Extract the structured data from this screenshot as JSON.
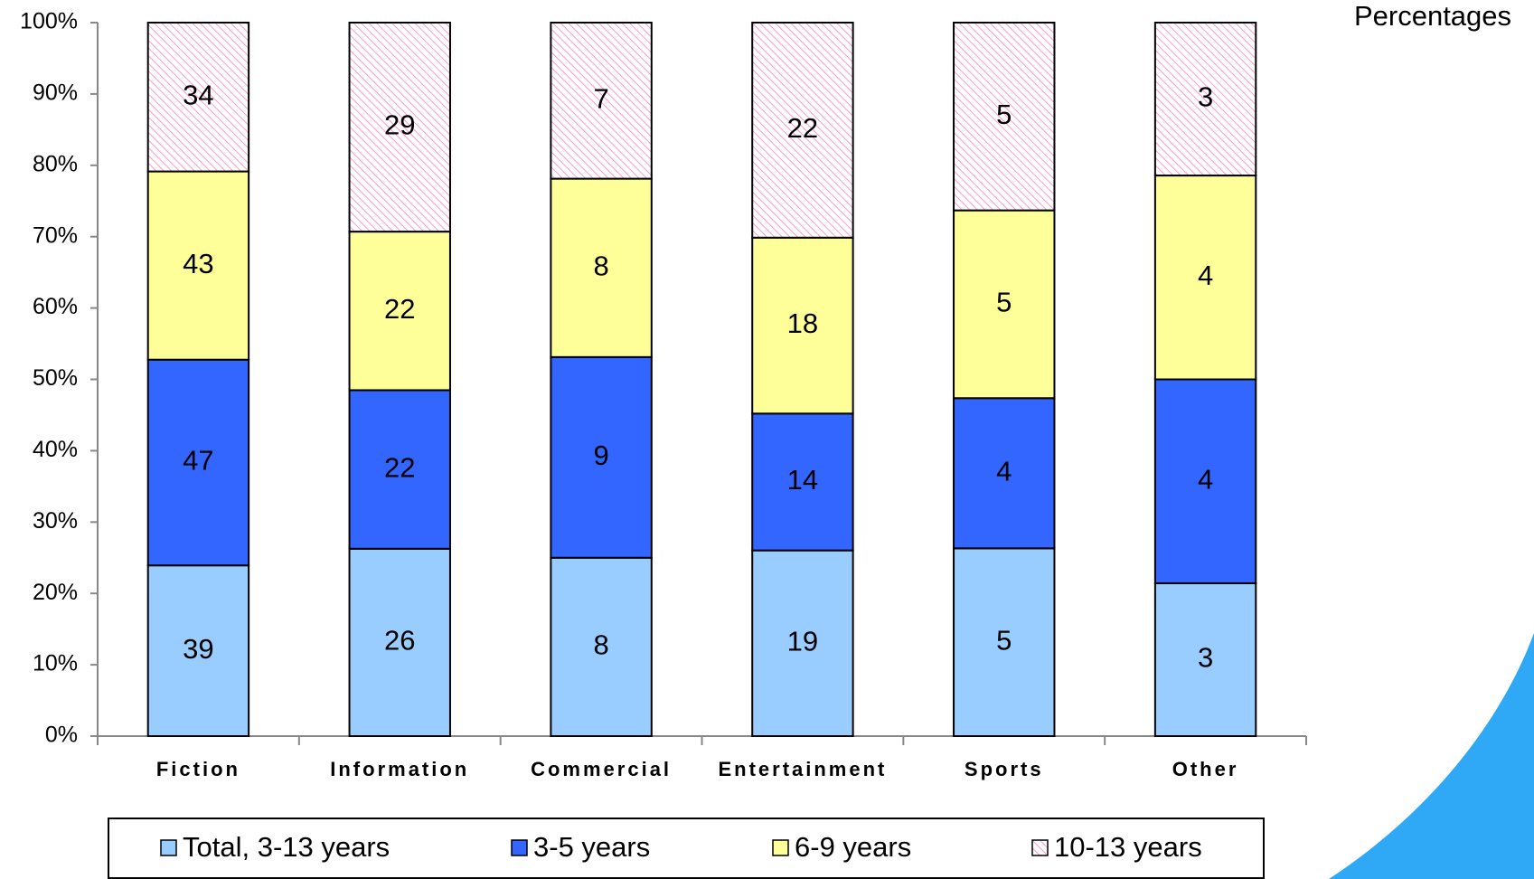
{
  "chart_data": {
    "type": "bar",
    "stack": "percent",
    "unit_label": "Percentages",
    "categories": [
      "Fiction",
      "Information",
      "Commercial",
      "Entertainment",
      "Sports",
      "Other"
    ],
    "series": [
      {
        "name": "Total, 3-13 years",
        "color": "#99ccff",
        "values": [
          39,
          26,
          8,
          19,
          5,
          3
        ]
      },
      {
        "name": "3-5 years",
        "color": "#3366ff",
        "values": [
          47,
          22,
          9,
          14,
          4,
          4
        ]
      },
      {
        "name": "6-9 years",
        "color": "#ffff99",
        "values": [
          43,
          22,
          8,
          18,
          5,
          4
        ]
      },
      {
        "name": "10-13 years",
        "color": "#ff99cc",
        "hatch": true,
        "values": [
          34,
          29,
          7,
          22,
          5,
          3
        ]
      }
    ],
    "ylim": [
      0,
      100
    ],
    "yticks": [
      {
        "value": 0,
        "label": "0%"
      },
      {
        "value": 10,
        "label": "10%"
      },
      {
        "value": 20,
        "label": "20%"
      },
      {
        "value": 30,
        "label": "30%"
      },
      {
        "value": 40,
        "label": "40%"
      },
      {
        "value": 50,
        "label": "50%"
      },
      {
        "value": 60,
        "label": "60%"
      },
      {
        "value": 70,
        "label": "70%"
      },
      {
        "value": 80,
        "label": "80%"
      },
      {
        "value": 90,
        "label": "90%"
      },
      {
        "value": 100,
        "label": "100%"
      }
    ]
  }
}
